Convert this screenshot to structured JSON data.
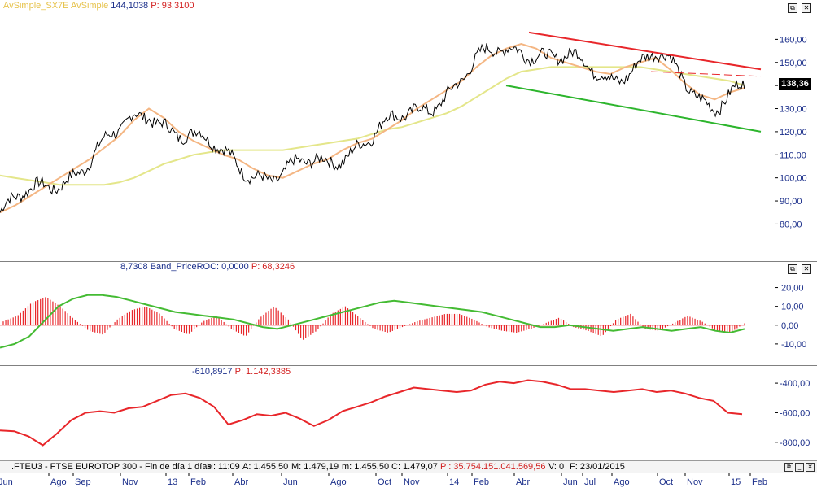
{
  "panel1": {
    "title_indicator": "AvSimple_SX7E",
    "title_indicator2": "AvSimple",
    "value": "144,1038",
    "p_value": "P: 93,3100",
    "last_price": "138,36",
    "yticks": [
      "160,00",
      "150,00",
      "140,00",
      "130,00",
      "120,00",
      "110,00",
      "100,00",
      "90,00",
      "80,00"
    ]
  },
  "panel2": {
    "value": "8,7308",
    "indicator": "Band_PriceROC: 0,0000",
    "p_value": "P: 68,3246",
    "yticks": [
      "20,00",
      "10,00",
      "0,00",
      "-10,00"
    ]
  },
  "panel3": {
    "value": "-610,8917",
    "p_value": "P: 1.142,3385",
    "yticks": [
      "-400,00",
      "-600,00",
      "-800,00"
    ]
  },
  "status": {
    "symbol": ".FTEU3 - FTSE EUROTOP 300 - Fin de día 1 días",
    "h": "H: 11:09",
    "a": "A: 1.455,50",
    "m": "M: 1.479,19",
    "min": "m: 1.455,50",
    "c": "C: 1.479,07",
    "p": "P : 35.754.151.041.569,56",
    "v": "V: 0",
    "f": "F: 23/01/2015"
  },
  "xaxis": [
    "Jun",
    "Ago",
    "Sep",
    "Nov",
    "13",
    "Feb",
    "Abr",
    "Jun",
    "Ago",
    "Oct",
    "Nov",
    "14",
    "Feb",
    "Abr",
    "Jun",
    "Jul",
    "Ago",
    "Oct",
    "Nov",
    "15",
    "Feb"
  ],
  "colors": {
    "price": "#000000",
    "ma_fast": "#f4b683",
    "ma_slow": "#e4e68a",
    "trend_upper": "#e8262a",
    "trend_lower": "#2db52d",
    "roc_bars": "#e8262a",
    "roc_line": "#44bb33",
    "osc_line": "#e8262a",
    "label_blue": "#1a2e8a",
    "label_red": "#d21e1e"
  },
  "chart_data": [
    {
      "type": "line",
      "series": [
        {
          "name": "AvSimple_SX7E",
          "values": [
            85,
            88,
            92,
            96,
            100,
            104,
            108,
            113,
            118,
            125,
            130,
            126,
            120,
            116,
            113,
            110,
            108,
            104,
            101,
            100,
            103,
            106,
            108,
            112,
            115,
            117,
            121,
            125,
            130,
            134,
            138,
            142,
            148,
            153,
            156,
            158,
            156,
            152,
            150,
            148,
            146,
            145,
            148,
            150,
            152,
            147,
            141,
            136,
            134,
            137,
            139
          ]
        },
        {
          "name": "AvSimple",
          "values": [
            101,
            100,
            99,
            98,
            97,
            97,
            97,
            97,
            98,
            100,
            103,
            106,
            108,
            110,
            111,
            112,
            112,
            112,
            112,
            112,
            113,
            114,
            115,
            116,
            117,
            119,
            121,
            122,
            124,
            126,
            128,
            131,
            135,
            139,
            143,
            146,
            147,
            148,
            148,
            148,
            148,
            148,
            148,
            148,
            147,
            146,
            145,
            144,
            143,
            142,
            140
          ]
        }
      ],
      "price_high": 163,
      "price_low": 73,
      "last_price": 138.36,
      "ylim": [
        65,
        170
      ]
    },
    {
      "type": "bar",
      "values": [
        2,
        5,
        12,
        15,
        10,
        3,
        -3,
        -5,
        3,
        8,
        10,
        6,
        -2,
        -5,
        2,
        5,
        -2,
        -6,
        4,
        10,
        3,
        -8,
        -3,
        6,
        10,
        4,
        -2,
        -4,
        -1,
        2,
        4,
        6,
        6,
        3,
        -1,
        -3,
        -4,
        -2,
        1,
        4,
        -1,
        -3,
        -6,
        3,
        6,
        -2,
        -3,
        1,
        5,
        2,
        -3,
        -4,
        1
      ],
      "line": [
        -12,
        -10,
        -6,
        2,
        10,
        14,
        16,
        16,
        15,
        13,
        11,
        9,
        7,
        6,
        5,
        4,
        3,
        1,
        -1,
        -2,
        0,
        2,
        4,
        6,
        8,
        10,
        12,
        13,
        12,
        11,
        10,
        9,
        8,
        7,
        5,
        3,
        1,
        -1,
        -1,
        0,
        -1,
        -2,
        -3,
        -2,
        -1,
        -2,
        -3,
        -2,
        -1,
        -3,
        -4,
        -2
      ],
      "ylim": [
        -20,
        25
      ]
    },
    {
      "type": "line",
      "values": [
        -720,
        -725,
        -760,
        -820,
        -740,
        -650,
        -600,
        -590,
        -600,
        -570,
        -560,
        -520,
        -480,
        -470,
        -500,
        -560,
        -680,
        -650,
        -610,
        -620,
        -600,
        -640,
        -690,
        -650,
        -590,
        -560,
        -530,
        -490,
        -460,
        -430,
        -440,
        -450,
        -460,
        -450,
        -410,
        -390,
        -400,
        -380,
        -390,
        -410,
        -440,
        -440,
        -450,
        -460,
        -450,
        -440,
        -460,
        -450,
        -470,
        -500,
        -520,
        -600,
        -610
      ],
      "ylim": [
        -900,
        -350
      ]
    }
  ]
}
